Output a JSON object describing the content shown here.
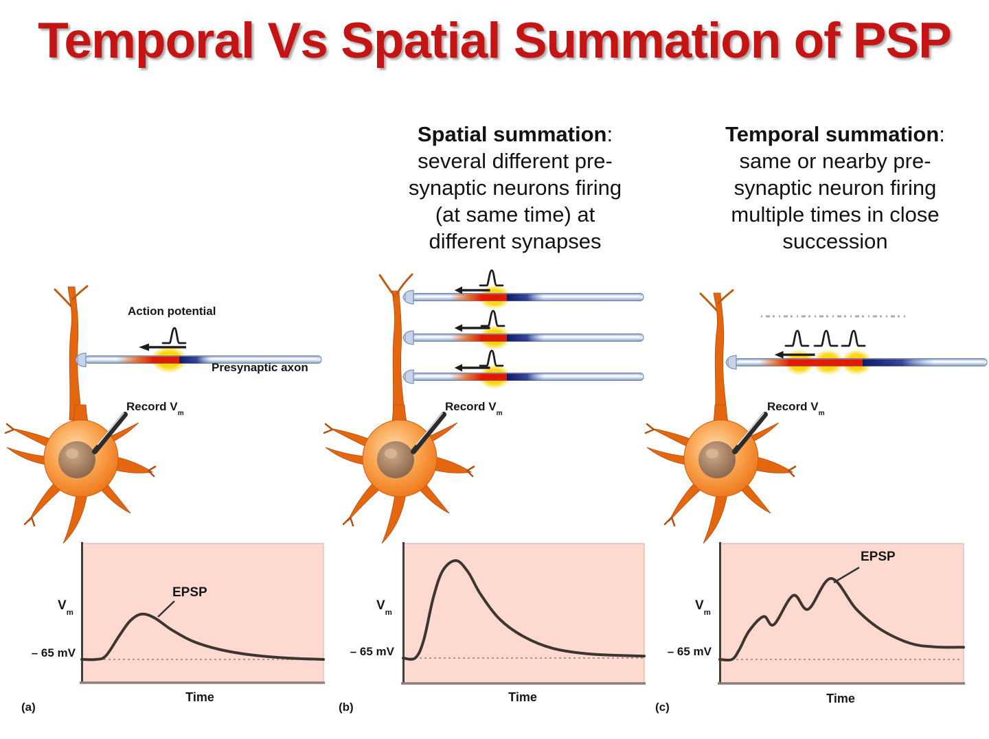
{
  "title": "Temporal Vs Spatial Summation of PSP",
  "headings": {
    "spatial": {
      "bold": "Spatial summation",
      "colon": ":",
      "lines": [
        "several different pre-",
        "synaptic neurons firing",
        "(at same time) at",
        "different synapses"
      ]
    },
    "temporal": {
      "bold": "Temporal summation",
      "colon": ":",
      "lines": [
        "same or nearby pre-",
        "synaptic neuron firing",
        "multiple times in close",
        "succession"
      ]
    }
  },
  "panels": {
    "a": {
      "letter": "(a)",
      "action_potential": "Action potential",
      "presynaptic_axon": "Presynaptic axon",
      "record": "Record V",
      "record_sub": "m",
      "vm": "V",
      "vm_sub": "m",
      "baseline": "– 65 mV",
      "time": "Time",
      "epsp": "EPSP"
    },
    "b": {
      "letter": "(b)",
      "record": "Record V",
      "record_sub": "m",
      "vm": "V",
      "vm_sub": "m",
      "baseline": "– 65 mV",
      "time": "Time"
    },
    "c": {
      "letter": "(c)",
      "record": "Record V",
      "record_sub": "m",
      "vm": "V",
      "vm_sub": "m",
      "baseline": "– 65 mV",
      "time": "Time",
      "epsp": "EPSP"
    }
  },
  "colors": {
    "title_red": "#c41414",
    "graph_background_pink": "#fdd9cf",
    "curve_dark": "#3d3531",
    "axon_tube_blue": "#9fb4d4",
    "active_zone_red": "#e11a00",
    "active_zone_navy": "#101b66",
    "glow_yellow": "#ffd400",
    "neuron_orange": "#ee7b1f",
    "nucleus_brown": "#a07a5c"
  },
  "chart_data": [
    {
      "type": "line",
      "id": "a",
      "xlabel": "Time",
      "ylabel": "Vm",
      "baseline_label": "– 65 mV",
      "annotation": "EPSP",
      "x_scale": "normalized time",
      "y_scale": "normalized EPSP amplitude (baseline = -65 mV)",
      "points": [
        [
          0,
          0
        ],
        [
          0.06,
          0
        ],
        [
          0.1,
          0.08
        ],
        [
          0.155,
          0.52
        ],
        [
          0.2,
          0.85
        ],
        [
          0.247,
          1.0
        ],
        [
          0.3,
          0.92
        ],
        [
          0.37,
          0.66
        ],
        [
          0.46,
          0.4
        ],
        [
          0.57,
          0.22
        ],
        [
          0.7,
          0.1
        ],
        [
          0.85,
          0.03
        ],
        [
          1,
          0
        ]
      ]
    },
    {
      "type": "line",
      "id": "b",
      "xlabel": "Time",
      "ylabel": "Vm",
      "baseline_label": "– 65 mV",
      "annotation": null,
      "x_scale": "normalized time",
      "y_scale": "normalized EPSP amplitude (baseline = -65 mV)",
      "points": [
        [
          0,
          0
        ],
        [
          0.05,
          0
        ],
        [
          0.085,
          0.18
        ],
        [
          0.125,
          0.62
        ],
        [
          0.165,
          0.9
        ],
        [
          0.22,
          1.0
        ],
        [
          0.27,
          0.88
        ],
        [
          0.32,
          0.66
        ],
        [
          0.4,
          0.4
        ],
        [
          0.5,
          0.22
        ],
        [
          0.62,
          0.1
        ],
        [
          0.78,
          0.04
        ],
        [
          1,
          0.02
        ]
      ]
    },
    {
      "type": "line",
      "id": "c",
      "xlabel": "Time",
      "ylabel": "Vm",
      "baseline_label": "– 65 mV",
      "annotation": "EPSP",
      "x_scale": "normalized time",
      "y_scale": "normalized EPSP amplitude (baseline = -65 mV)",
      "points": [
        [
          0,
          0
        ],
        [
          0.05,
          0
        ],
        [
          0.08,
          0.12
        ],
        [
          0.12,
          0.35
        ],
        [
          0.18,
          0.53
        ],
        [
          0.222,
          0.43
        ],
        [
          0.301,
          0.79
        ],
        [
          0.363,
          0.62
        ],
        [
          0.456,
          1.0
        ],
        [
          0.56,
          0.62
        ],
        [
          0.66,
          0.37
        ],
        [
          0.78,
          0.2
        ],
        [
          0.88,
          0.155
        ],
        [
          1,
          0.15
        ]
      ]
    }
  ]
}
